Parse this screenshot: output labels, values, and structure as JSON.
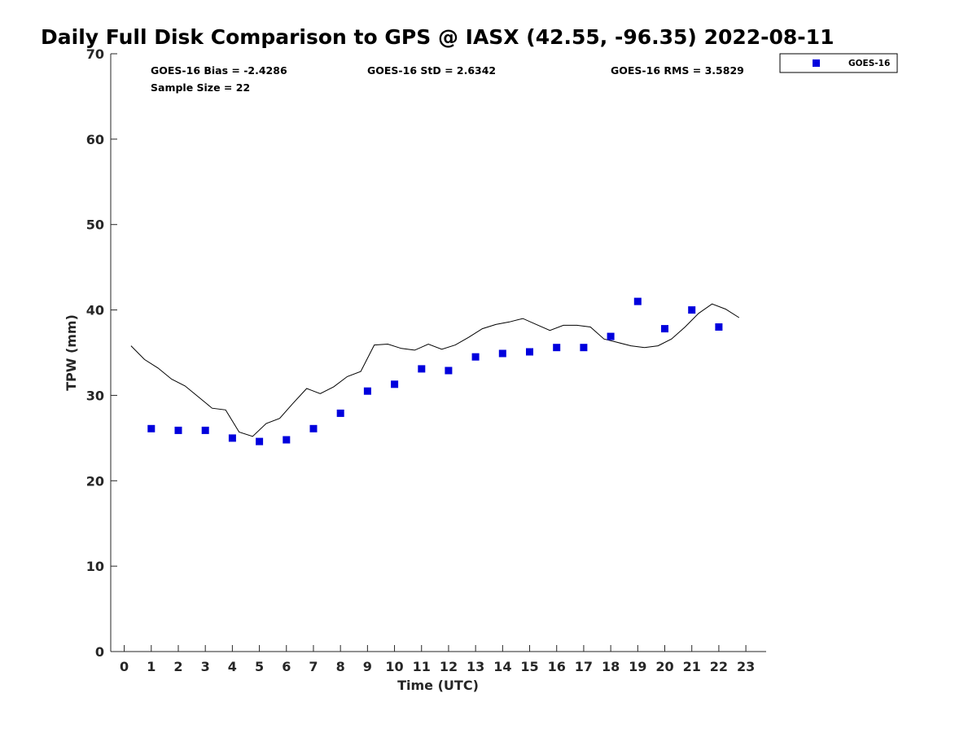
{
  "chart_data": {
    "type": "scatter",
    "title": "Daily Full Disk Comparison to GPS @ IASX (42.55, -96.35) 2022-08-11",
    "xlabel": "Time (UTC)",
    "ylabel": "TPW (mm)",
    "xlim": [
      -0.5,
      23.75
    ],
    "ylim": [
      0,
      70
    ],
    "x_ticks": [
      0,
      1,
      2,
      3,
      4,
      5,
      6,
      7,
      8,
      9,
      10,
      11,
      12,
      13,
      14,
      15,
      16,
      17,
      18,
      19,
      20,
      21,
      22,
      23
    ],
    "x_tick_labels": [
      "0",
      "1",
      "2",
      "3",
      "4",
      "5",
      "6",
      "7",
      "8",
      "9",
      "10",
      "11",
      "12",
      "13",
      "14",
      "15",
      "16",
      "17",
      "18",
      "19",
      "20",
      "21",
      "22",
      "23"
    ],
    "y_ticks": [
      0,
      10,
      20,
      30,
      40,
      50,
      60,
      70
    ],
    "y_tick_labels": [
      "0",
      "10",
      "20",
      "30",
      "40",
      "50",
      "60",
      "70"
    ],
    "stats": {
      "bias": "GOES-16 Bias = -2.4286",
      "std": "GOES-16 StD = 2.6342",
      "rms": "GOES-16 RMS = 3.5829",
      "sample": "Sample Size = 22"
    },
    "legend": {
      "label": "GOES-16",
      "position": "top-right",
      "color": "#0000dd"
    },
    "series": [
      {
        "name": "GOES-16",
        "kind": "markers",
        "color": "#0000dd",
        "x": [
          1,
          2,
          3,
          4,
          5,
          6,
          7,
          8,
          9,
          10,
          11,
          12,
          13,
          14,
          15,
          16,
          17,
          18,
          19,
          20,
          21,
          22
        ],
        "y": [
          26.1,
          25.9,
          25.9,
          25.0,
          24.6,
          24.8,
          26.1,
          27.9,
          30.5,
          31.3,
          33.1,
          32.9,
          34.5,
          34.9,
          35.1,
          35.6,
          35.6,
          36.9,
          41.0,
          37.8,
          40.0,
          38.0
        ]
      },
      {
        "name": "GPS",
        "kind": "line",
        "color": "#000000",
        "x": [
          0.25,
          0.75,
          1.25,
          1.75,
          2.25,
          2.75,
          3.25,
          3.75,
          4.25,
          4.75,
          5.25,
          5.75,
          6.25,
          6.75,
          7.25,
          7.75,
          8.25,
          8.75,
          9.25,
          9.75,
          10.25,
          10.75,
          11.25,
          11.75,
          12.25,
          12.75,
          13.25,
          13.75,
          14.25,
          14.75,
          15.25,
          15.75,
          16.25,
          16.75,
          17.25,
          17.75,
          18.25,
          18.75,
          19.25,
          19.75,
          20.25,
          20.75,
          21.25,
          21.75,
          22.25,
          22.75
        ],
        "y": [
          35.8,
          34.2,
          33.2,
          31.9,
          31.1,
          29.8,
          28.5,
          28.3,
          25.7,
          25.2,
          26.7,
          27.3,
          29.1,
          30.8,
          30.2,
          31.0,
          32.2,
          32.8,
          35.9,
          36.0,
          35.5,
          35.3,
          36.0,
          35.4,
          35.9,
          36.8,
          37.8,
          38.3,
          38.6,
          39.0,
          38.3,
          37.6,
          38.2,
          38.2,
          38.0,
          36.6,
          36.2,
          35.8,
          35.6,
          35.8,
          36.6,
          38.0,
          39.6,
          40.7,
          40.1,
          39.1
        ]
      }
    ]
  }
}
